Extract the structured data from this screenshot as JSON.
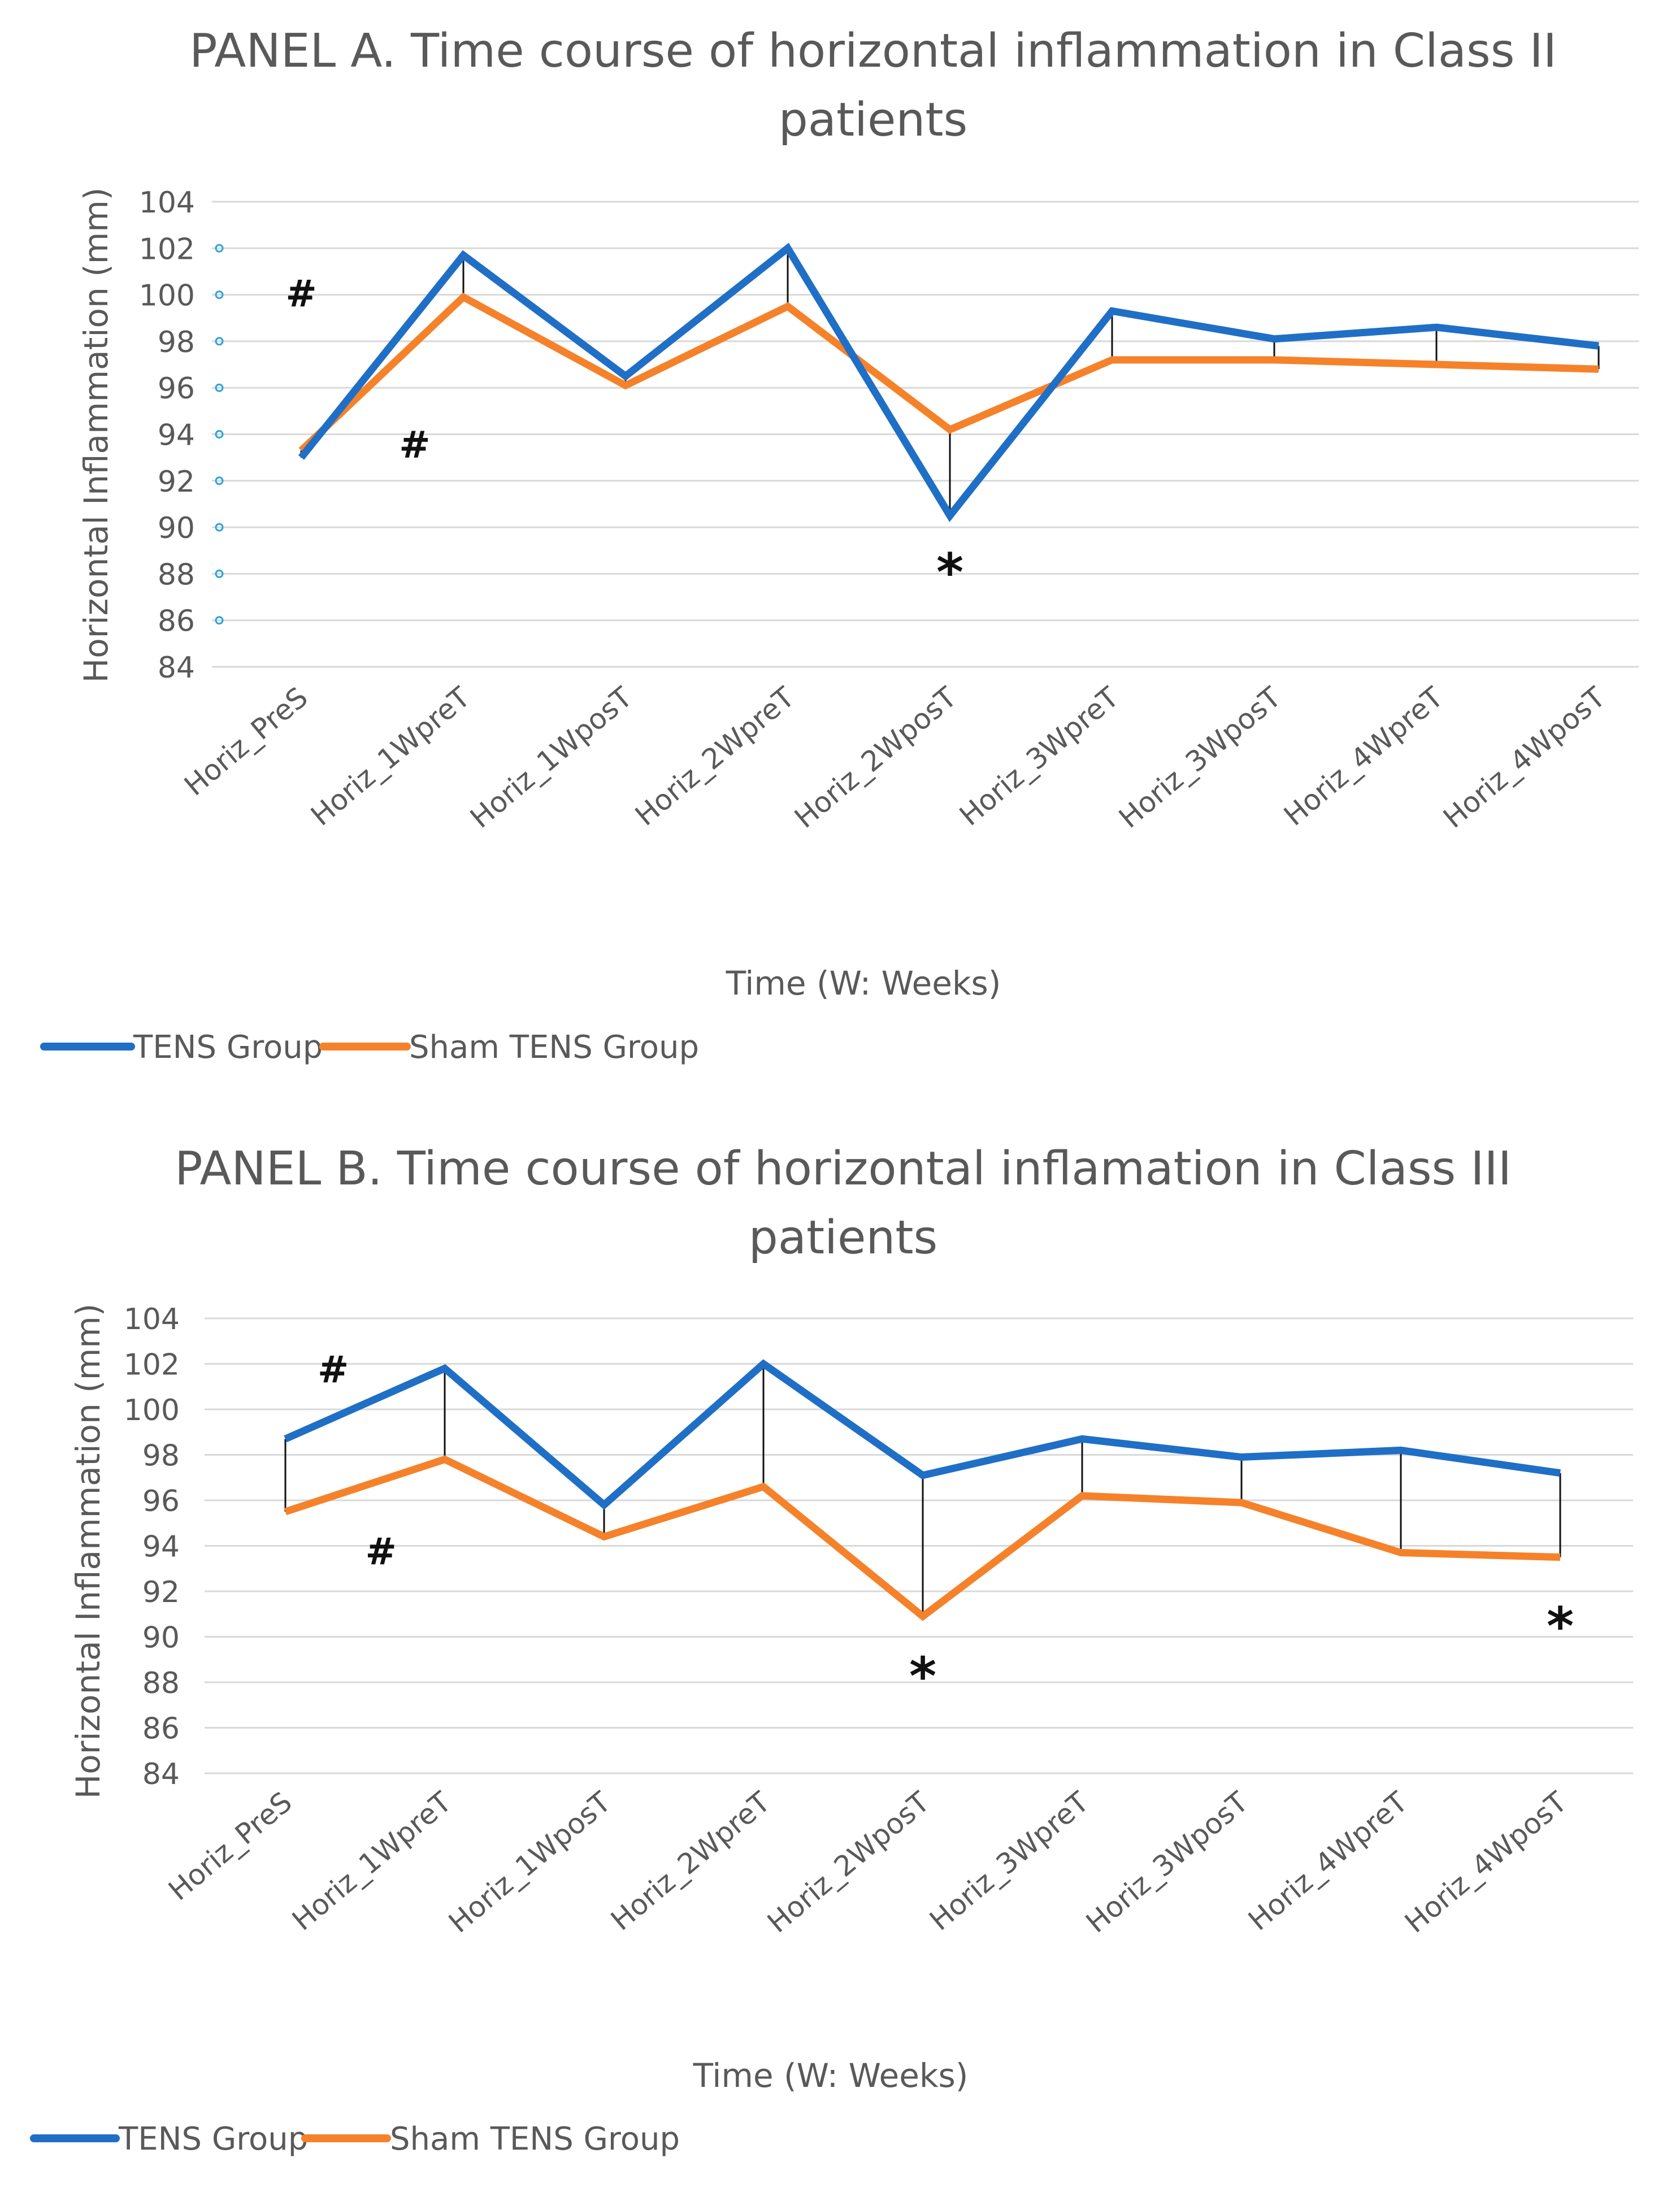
{
  "chart_data": [
    {
      "type": "line",
      "title": "PANEL A. Time course of horizontal inflammation in Class II patients",
      "title_lines": [
        "PANEL A. Time course of horizontal inflammation in Class II",
        "patients"
      ],
      "xlabel": "Time (W: Weeks)",
      "ylabel": "Horizontal Inflammation (mm)",
      "categories": [
        "Horiz_PreS",
        "Horiz_1WpreT",
        "Horiz_1WposT",
        "Horiz_2WpreT",
        "Horiz_2WposT",
        "Horiz_3WpreT",
        "Horiz_3WposT",
        "Horiz_4WpreT",
        "Horiz_4WposT"
      ],
      "ylim": [
        84,
        104
      ],
      "yticks": [
        84,
        86,
        88,
        90,
        92,
        94,
        96,
        98,
        100,
        102,
        104
      ],
      "grid": true,
      "legend_position": "bottom-left",
      "series": [
        {
          "name": "TENS Group",
          "color": "#1f6fc6",
          "values": [
            93.0,
            101.7,
            96.5,
            102.0,
            90.5,
            99.3,
            98.1,
            98.6,
            97.8
          ]
        },
        {
          "name": "Sham TENS Group",
          "color": "#f5822a",
          "values": [
            93.3,
            99.9,
            96.1,
            99.5,
            94.2,
            97.2,
            97.2,
            97.0,
            96.8
          ]
        }
      ],
      "annotations": [
        {
          "text": "#",
          "category": 0,
          "value": 100.1
        },
        {
          "text": "#",
          "category": 0.7,
          "value": 93.6
        },
        {
          "text": "*",
          "category": 4,
          "value": 87.9
        }
      ]
    },
    {
      "type": "line",
      "title": "PANEL B. Time course of horizontal inflamation in Class III patients",
      "title_lines": [
        "PANEL B. Time course of horizontal inflamation in Class III",
        "patients"
      ],
      "xlabel": "Time (W: Weeks)",
      "ylabel": "Horizontal Inflammation (mm)",
      "categories": [
        "Horiz_PreS",
        "Horiz_1WpreT",
        "Horiz_1WposT",
        "Horiz_2WpreT",
        "Horiz_2WposT",
        "Horiz_3WpreT",
        "Horiz_3WposT",
        "Horiz_4WpreT",
        "Horiz_4WposT"
      ],
      "ylim": [
        84,
        104
      ],
      "yticks": [
        84,
        86,
        88,
        90,
        92,
        94,
        96,
        98,
        100,
        102,
        104
      ],
      "grid": true,
      "legend_position": "bottom-left",
      "series": [
        {
          "name": "TENS Group",
          "color": "#1f6fc6",
          "values": [
            98.7,
            101.8,
            95.8,
            102.0,
            97.1,
            98.7,
            97.9,
            98.2,
            97.2
          ]
        },
        {
          "name": "Sham TENS Group",
          "color": "#f5822a",
          "values": [
            95.5,
            97.8,
            94.4,
            96.6,
            90.9,
            96.2,
            95.9,
            93.7,
            93.5
          ]
        }
      ],
      "annotations": [
        {
          "text": "#",
          "category": 0.3,
          "value": 101.8
        },
        {
          "text": "#",
          "category": 0.6,
          "value": 93.8
        },
        {
          "text": "*",
          "category": 4,
          "value": 88.1
        },
        {
          "text": "*",
          "category": 8,
          "value": 90.3
        }
      ]
    }
  ]
}
